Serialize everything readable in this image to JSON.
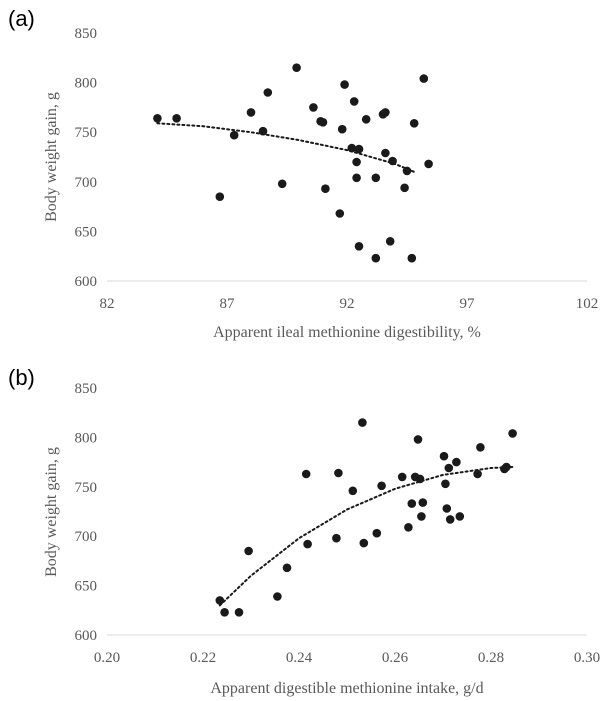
{
  "colors": {
    "point": "#1a1a1a",
    "axis": "#d9d9d9",
    "text": "#595959",
    "trend": "#1a1a1a"
  },
  "chart_data": [
    {
      "type": "scatter",
      "panel_label": "(a)",
      "xlabel": "Apparent ileal methionine digestibility, %",
      "ylabel": "Body weight gain, g",
      "xlim": [
        82,
        102
      ],
      "ylim": [
        600,
        850
      ],
      "xticks": [
        "82",
        "87",
        "92",
        "97",
        "102"
      ],
      "yticks": [
        "600",
        "650",
        "700",
        "750",
        "800",
        "850"
      ],
      "grid": false,
      "trendline": {
        "style": "dotted",
        "type": "polynomial",
        "x_range": [
          84.1,
          94.8
        ],
        "points": [
          [
            84.1,
            759
          ],
          [
            86.0,
            756
          ],
          [
            88.0,
            750
          ],
          [
            90.0,
            742
          ],
          [
            92.0,
            732
          ],
          [
            94.0,
            718
          ],
          [
            94.8,
            710
          ]
        ]
      },
      "points": [
        [
          84.1,
          764
        ],
        [
          84.9,
          764
        ],
        [
          86.7,
          685
        ],
        [
          87.3,
          747
        ],
        [
          88.0,
          770
        ],
        [
          88.5,
          751
        ],
        [
          88.7,
          790
        ],
        [
          89.3,
          698
        ],
        [
          89.9,
          815
        ],
        [
          90.6,
          775
        ],
        [
          90.9,
          761
        ],
        [
          91.0,
          760
        ],
        [
          91.1,
          693
        ],
        [
          91.7,
          668
        ],
        [
          91.8,
          753
        ],
        [
          91.9,
          798
        ],
        [
          92.2,
          734
        ],
        [
          92.3,
          781
        ],
        [
          92.4,
          720
        ],
        [
          92.4,
          704
        ],
        [
          92.5,
          733
        ],
        [
          92.5,
          635
        ],
        [
          92.8,
          763
        ],
        [
          93.2,
          704
        ],
        [
          93.2,
          623
        ],
        [
          93.5,
          768
        ],
        [
          93.6,
          770
        ],
        [
          93.6,
          729
        ],
        [
          93.8,
          640
        ],
        [
          93.9,
          721
        ],
        [
          94.4,
          694
        ],
        [
          94.5,
          711
        ],
        [
          94.7,
          623
        ],
        [
          94.8,
          759
        ],
        [
          95.2,
          804
        ],
        [
          95.4,
          718
        ]
      ]
    },
    {
      "type": "scatter",
      "panel_label": "(b)",
      "xlabel": "Apparent digestible methionine intake, g/d",
      "ylabel": "Body weight gain, g",
      "xlim": [
        0.2,
        0.3
      ],
      "ylim": [
        600,
        850
      ],
      "xticks": [
        "0.20",
        "0.22",
        "0.24",
        "0.26",
        "0.28",
        "0.30"
      ],
      "yticks": [
        "600",
        "650",
        "700",
        "750",
        "800",
        "850"
      ],
      "grid": false,
      "trendline": {
        "style": "dotted",
        "type": "polynomial",
        "x_range": [
          0.2235,
          0.2845
        ],
        "points": [
          [
            0.2235,
            630
          ],
          [
            0.23,
            660
          ],
          [
            0.24,
            698
          ],
          [
            0.25,
            727
          ],
          [
            0.26,
            748
          ],
          [
            0.27,
            762
          ],
          [
            0.28,
            769
          ],
          [
            0.2845,
            770
          ]
        ]
      },
      "points": [
        [
          0.2235,
          635
        ],
        [
          0.2245,
          623
        ],
        [
          0.2275,
          623
        ],
        [
          0.2295,
          685
        ],
        [
          0.2355,
          639
        ],
        [
          0.2375,
          668
        ],
        [
          0.2415,
          763
        ],
        [
          0.2418,
          692
        ],
        [
          0.2478,
          698
        ],
        [
          0.2482,
          764
        ],
        [
          0.2512,
          746
        ],
        [
          0.2532,
          815
        ],
        [
          0.2535,
          693
        ],
        [
          0.2562,
          703
        ],
        [
          0.2572,
          751
        ],
        [
          0.2615,
          760
        ],
        [
          0.2628,
          709
        ],
        [
          0.2635,
          733
        ],
        [
          0.2642,
          760
        ],
        [
          0.2648,
          798
        ],
        [
          0.2652,
          758
        ],
        [
          0.2655,
          720
        ],
        [
          0.2658,
          734
        ],
        [
          0.2702,
          781
        ],
        [
          0.2705,
          753
        ],
        [
          0.2708,
          728
        ],
        [
          0.2712,
          769
        ],
        [
          0.2715,
          717
        ],
        [
          0.2728,
          775
        ],
        [
          0.2735,
          720
        ],
        [
          0.2772,
          763
        ],
        [
          0.2778,
          790
        ],
        [
          0.2828,
          768
        ],
        [
          0.2832,
          770
        ],
        [
          0.2845,
          804
        ]
      ]
    }
  ]
}
